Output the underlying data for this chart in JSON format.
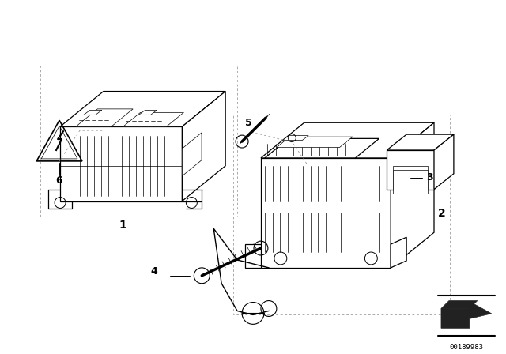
{
  "bg_color": "#ffffff",
  "line_color": "#000000",
  "fig_width": 6.4,
  "fig_height": 4.48,
  "dpi": 100,
  "part_number": "00189983"
}
